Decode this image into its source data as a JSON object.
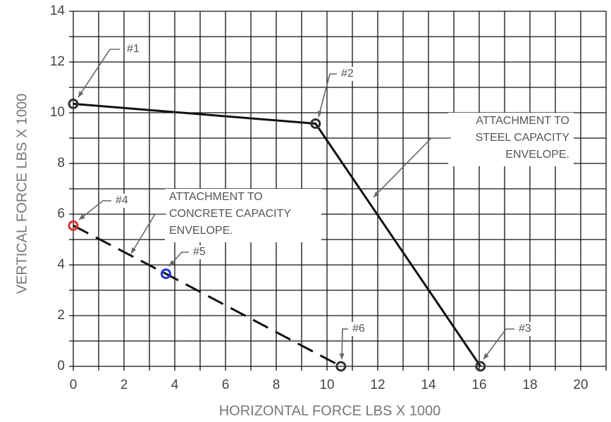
{
  "chart_data": {
    "type": "line",
    "xlabel": "HORIZONTAL FORCE LBS X 1000",
    "ylabel": "VERTICAL FORCE LBS X 1000",
    "xlim": [
      0,
      21
    ],
    "ylim": [
      0,
      14
    ],
    "xticks": [
      0,
      2,
      4,
      6,
      8,
      10,
      12,
      14,
      16,
      18,
      20
    ],
    "yticks": [
      0,
      2,
      4,
      6,
      8,
      10,
      12,
      14
    ],
    "xminorticks": [
      1,
      3,
      5,
      7,
      9,
      11,
      13,
      15,
      17,
      19,
      21
    ],
    "yminorticks": [
      1,
      3,
      5,
      7,
      9,
      11,
      13
    ],
    "grid": true,
    "series": [
      {
        "x": [
          0,
          9.55,
          16.05
        ],
        "values": [
          10.35,
          9.57,
          0
        ],
        "color": "#111111",
        "dashed": false
      },
      {
        "x": [
          0,
          3.65,
          10.55
        ],
        "values": [
          5.55,
          3.65,
          0
        ],
        "color": "#111111",
        "dashed": true
      }
    ],
    "points": [
      {
        "label": "#1",
        "x": 0,
        "y": 10.35,
        "color": "#333333"
      },
      {
        "label": "#2",
        "x": 9.55,
        "y": 9.57,
        "color": "#333333"
      },
      {
        "label": "#3",
        "x": 16.05,
        "y": 0,
        "color": "#333333"
      },
      {
        "label": "#4",
        "x": 0,
        "y": 5.55,
        "color": "#e03030"
      },
      {
        "label": "#5",
        "x": 3.65,
        "y": 3.65,
        "color": "#2030d0"
      },
      {
        "label": "#6",
        "x": 10.55,
        "y": 0,
        "color": "#333333"
      }
    ],
    "annotations": [
      {
        "lines": [
          "ATTACHMENT TO",
          "STEEL CAPACITY",
          "ENVELOPE."
        ]
      },
      {
        "lines": [
          "ATTACHMENT TO",
          "CONCRETE CAPACITY",
          "ENVELOPE."
        ]
      }
    ]
  }
}
